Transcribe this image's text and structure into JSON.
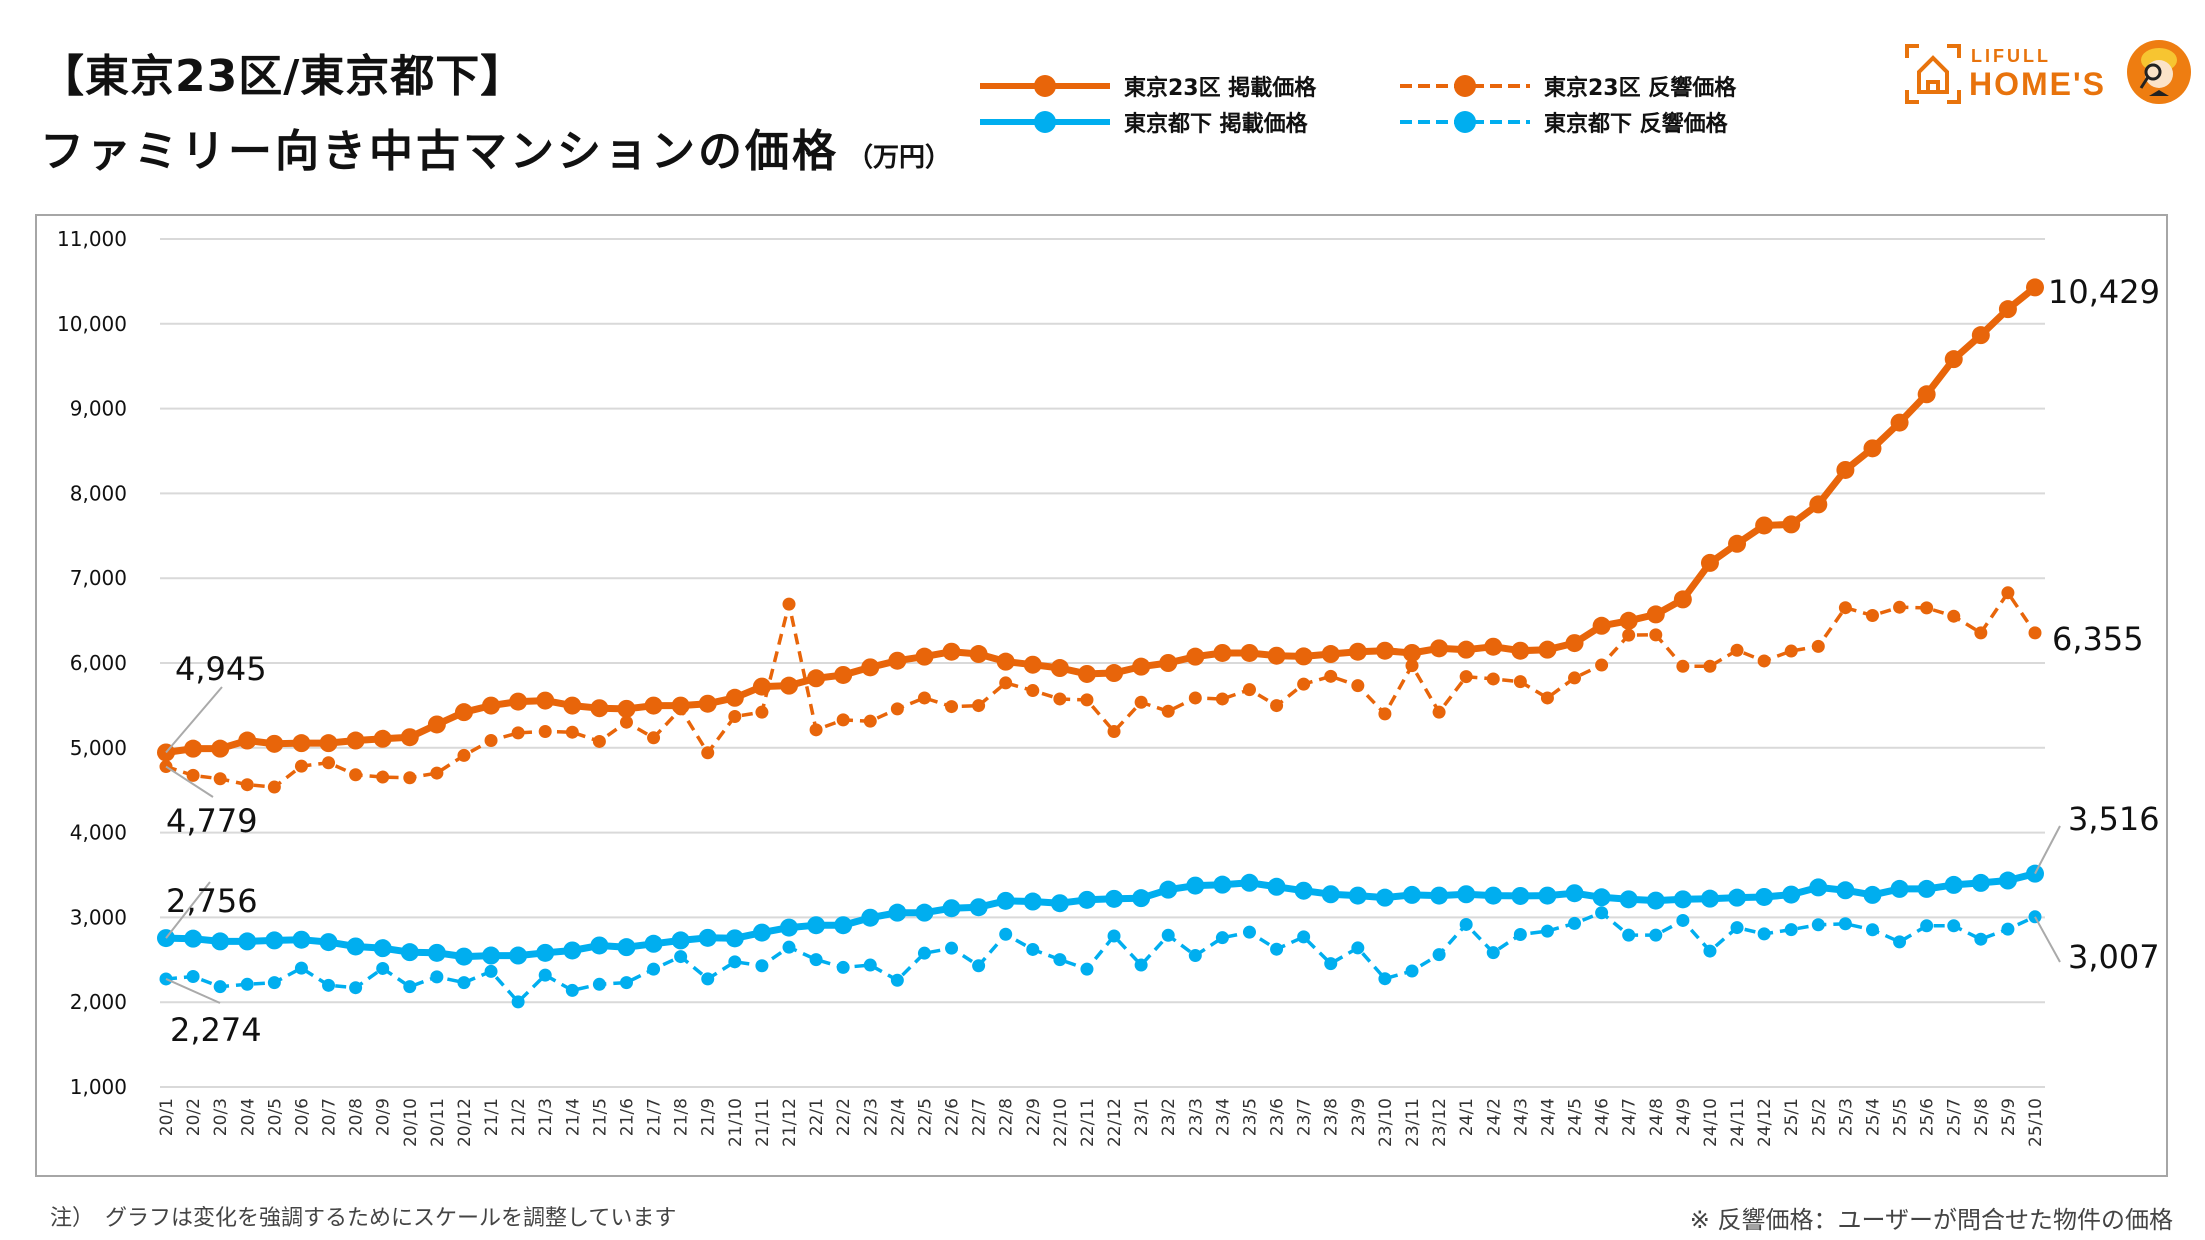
{
  "header": {
    "title_line1": "【東京23区/東京都下】",
    "title_line2": "ファミリー向き中古マンションの価格",
    "unit": "（万円）"
  },
  "legend": [
    {
      "label": "東京23区 掲載価格",
      "color": "#e8650a",
      "style": "solid"
    },
    {
      "label": "東京23区 反響価格",
      "color": "#e8650a",
      "style": "dashed"
    },
    {
      "label": "東京都下 掲載価格",
      "color": "#00aeef",
      "style": "solid"
    },
    {
      "label": "東京都下 反響価格",
      "color": "#00aeef",
      "style": "dashed"
    }
  ],
  "logo": {
    "brand_top": "LIFULL",
    "brand_main": "HOME'S"
  },
  "footer": {
    "note_left": "注）　グラフは変化を強調するためにスケールを調整しています",
    "note_right": "※ 反響価格：ユーザーが問合せた物件の価格"
  },
  "chart_data": {
    "type": "line",
    "title": "【東京23区/東京都下】ファミリー向き中古マンションの価格（万円）",
    "xlabel": "",
    "ylabel": "万円",
    "ylim": [
      1000,
      11000
    ],
    "yticks": [
      1000,
      2000,
      3000,
      4000,
      5000,
      6000,
      7000,
      8000,
      9000,
      10000,
      11000
    ],
    "ytick_labels": [
      "1,000",
      "2,000",
      "3,000",
      "4,000",
      "5,000",
      "6,000",
      "7,000",
      "8,000",
      "9,000",
      "10,000",
      "11,000"
    ],
    "grid": true,
    "legend_position": "top",
    "x": [
      "20/1",
      "20/2",
      "20/3",
      "20/4",
      "20/5",
      "20/6",
      "20/7",
      "20/8",
      "20/9",
      "20/10",
      "20/11",
      "20/12",
      "21/1",
      "21/2",
      "21/3",
      "21/4",
      "21/5",
      "21/6",
      "21/7",
      "21/8",
      "21/9",
      "21/10",
      "21/11",
      "21/12",
      "22/1",
      "22/2",
      "22/3",
      "22/4",
      "22/5",
      "22/6",
      "22/7",
      "22/8",
      "22/9",
      "22/10",
      "22/11",
      "22/12",
      "23/1",
      "23/2",
      "23/3",
      "23/4",
      "23/5",
      "23/6",
      "23/7",
      "23/8",
      "23/9",
      "23/10",
      "23/11",
      "23/12",
      "24/1",
      "24/2",
      "24/3",
      "24/4",
      "24/5",
      "24/6",
      "24/7",
      "24/8",
      "24/9",
      "24/10",
      "24/11",
      "24/12",
      "25/1",
      "25/2",
      "25/3",
      "25/4",
      "25/5",
      "25/6",
      "25/7",
      "25/8",
      "25/9",
      "25/10"
    ],
    "series": [
      {
        "name": "東京23区 掲載価格",
        "color": "#e8650a",
        "style": "solid",
        "values": [
          4945,
          4990,
          4990,
          5086,
          5047,
          5055,
          5055,
          5086,
          5106,
          5125,
          5275,
          5420,
          5498,
          5545,
          5557,
          5498,
          5467,
          5459,
          5498,
          5498,
          5520,
          5590,
          5722,
          5733,
          5820,
          5859,
          5949,
          6027,
          6075,
          6133,
          6106,
          6016,
          5980,
          5941,
          5871,
          5882,
          5957,
          6000,
          6075,
          6118,
          6118,
          6086,
          6078,
          6106,
          6133,
          6145,
          6118,
          6173,
          6157,
          6192,
          6145,
          6157,
          6235,
          6439,
          6498,
          6573,
          6750,
          7180,
          7406,
          7622,
          7634,
          7870,
          8276,
          8531,
          8835,
          9169,
          9583,
          9866,
          10173,
          10429
        ],
        "first_label": "4,945",
        "last_label": "10,429"
      },
      {
        "name": "東京23区 反響価格",
        "color": "#e8650a",
        "style": "dashed",
        "values": [
          4779,
          4675,
          4635,
          4565,
          4537,
          4784,
          4824,
          4682,
          4655,
          4647,
          4702,
          4910,
          5086,
          5176,
          5192,
          5184,
          5075,
          5302,
          5118,
          5459,
          4941,
          5369,
          5420,
          6694,
          5212,
          5329,
          5314,
          5459,
          5588,
          5486,
          5498,
          5765,
          5675,
          5576,
          5565,
          5192,
          5537,
          5431,
          5588,
          5576,
          5686,
          5498,
          5751,
          5843,
          5733,
          5400,
          5969,
          5420,
          5839,
          5812,
          5780,
          5588,
          5824,
          5976,
          6329,
          6332,
          5961,
          5961,
          6150,
          6024,
          6141,
          6196,
          6652,
          6560,
          6658,
          6650,
          6552,
          6355,
          6828,
          6355
        ],
        "first_label": "4,779",
        "last_label": "6,355"
      },
      {
        "name": "東京都下 掲載価格",
        "color": "#00aeef",
        "style": "solid",
        "values": [
          2756,
          2749,
          2717,
          2717,
          2729,
          2737,
          2709,
          2657,
          2637,
          2590,
          2582,
          2538,
          2550,
          2550,
          2582,
          2610,
          2669,
          2649,
          2689,
          2729,
          2759,
          2753,
          2821,
          2880,
          2908,
          2908,
          2996,
          3056,
          3056,
          3108,
          3120,
          3195,
          3187,
          3167,
          3207,
          3219,
          3227,
          3327,
          3375,
          3386,
          3408,
          3361,
          3315,
          3273,
          3257,
          3233,
          3265,
          3257,
          3273,
          3257,
          3253,
          3257,
          3285,
          3237,
          3213,
          3198,
          3213,
          3221,
          3233,
          3241,
          3269,
          3354,
          3320,
          3265,
          3336,
          3336,
          3383,
          3407,
          3435,
          3516
        ],
        "first_label": "2,756",
        "last_label": "3,516"
      },
      {
        "name": "東京都下 反響価格",
        "color": "#00aeef",
        "style": "dashed",
        "values": [
          2274,
          2303,
          2183,
          2211,
          2231,
          2402,
          2199,
          2171,
          2398,
          2183,
          2299,
          2231,
          2363,
          2004,
          2319,
          2139,
          2211,
          2231,
          2390,
          2538,
          2275,
          2476,
          2430,
          2649,
          2502,
          2410,
          2438,
          2259,
          2578,
          2637,
          2430,
          2801,
          2622,
          2502,
          2390,
          2781,
          2438,
          2789,
          2550,
          2761,
          2826,
          2625,
          2770,
          2455,
          2640,
          2277,
          2368,
          2561,
          2917,
          2585,
          2798,
          2838,
          2929,
          3055,
          2791,
          2791,
          2964,
          2603,
          2880,
          2806,
          2856,
          2913,
          2925,
          2854,
          2711,
          2901,
          2901,
          2743,
          2862,
          3007
        ],
        "first_label": "2,274",
        "last_label": "3,007"
      }
    ]
  }
}
